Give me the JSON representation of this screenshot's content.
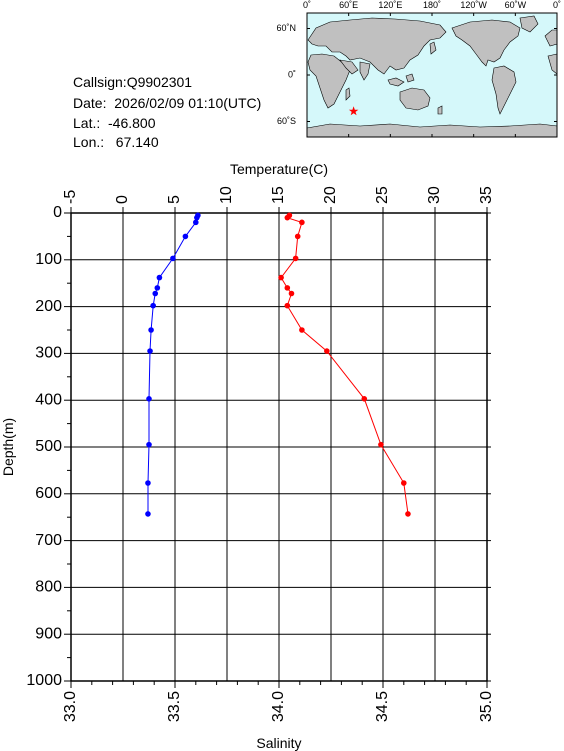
{
  "header": {
    "callsign": "Callsign:Q9902301",
    "date": "Date:  2026/02/09 01:10(UTC)",
    "lat": "Lat.:  -46.800",
    "lon": "Lon.:   67.140"
  },
  "map": {
    "top_labels": [
      "0˚",
      "60˚E",
      "120˚E",
      "180˚",
      "120˚W",
      "60˚W",
      "0˚"
    ],
    "right_labels": [
      "60˚N",
      "0˚",
      "60˚S"
    ],
    "ocean_color": "#d5f8fa",
    "land_color": "#c0c0c0",
    "marker_color": "#ff0000",
    "marker_lon": 67.14,
    "marker_lat": -46.8
  },
  "chart_data": {
    "type": "line",
    "x_top_label": "Temperature(C)",
    "x_bottom_label": "Salinity",
    "ylabel": "Depth(m)",
    "temp_range": [
      -5,
      35
    ],
    "temp_ticks": [
      "-5",
      "0",
      "5",
      "10",
      "15",
      "20",
      "25",
      "30",
      "35"
    ],
    "sal_range": [
      33.0,
      35.0
    ],
    "sal_ticks": [
      "33.0",
      "33.5",
      "34.0",
      "34.5",
      "35.0"
    ],
    "depth_range": [
      0,
      1000
    ],
    "depth_ticks": [
      "0",
      "100",
      "200",
      "300",
      "400",
      "500",
      "600",
      "700",
      "800",
      "900",
      "1000"
    ],
    "grid": true,
    "series": [
      {
        "color": "#0000ff",
        "axis": "temperature",
        "points": [
          [
            7.2,
            5
          ],
          [
            7.1,
            10
          ],
          [
            7.0,
            20
          ],
          [
            6.0,
            50
          ],
          [
            4.8,
            97
          ],
          [
            3.5,
            138
          ],
          [
            3.3,
            160
          ],
          [
            3.1,
            172
          ],
          [
            2.9,
            198
          ],
          [
            2.7,
            250
          ],
          [
            2.6,
            295
          ],
          [
            2.5,
            397
          ],
          [
            2.5,
            495
          ],
          [
            2.4,
            577
          ],
          [
            2.4,
            643
          ]
        ]
      },
      {
        "color": "#ff0000",
        "axis": "salinity",
        "points": [
          [
            34.05,
            5
          ],
          [
            34.04,
            10
          ],
          [
            34.11,
            20
          ],
          [
            34.09,
            50
          ],
          [
            34.08,
            97
          ],
          [
            34.01,
            138
          ],
          [
            34.04,
            160
          ],
          [
            34.06,
            172
          ],
          [
            34.04,
            198
          ],
          [
            34.11,
            250
          ],
          [
            34.23,
            295
          ],
          [
            34.41,
            397
          ],
          [
            34.49,
            495
          ],
          [
            34.6,
            577
          ],
          [
            34.62,
            643
          ]
        ]
      }
    ]
  }
}
